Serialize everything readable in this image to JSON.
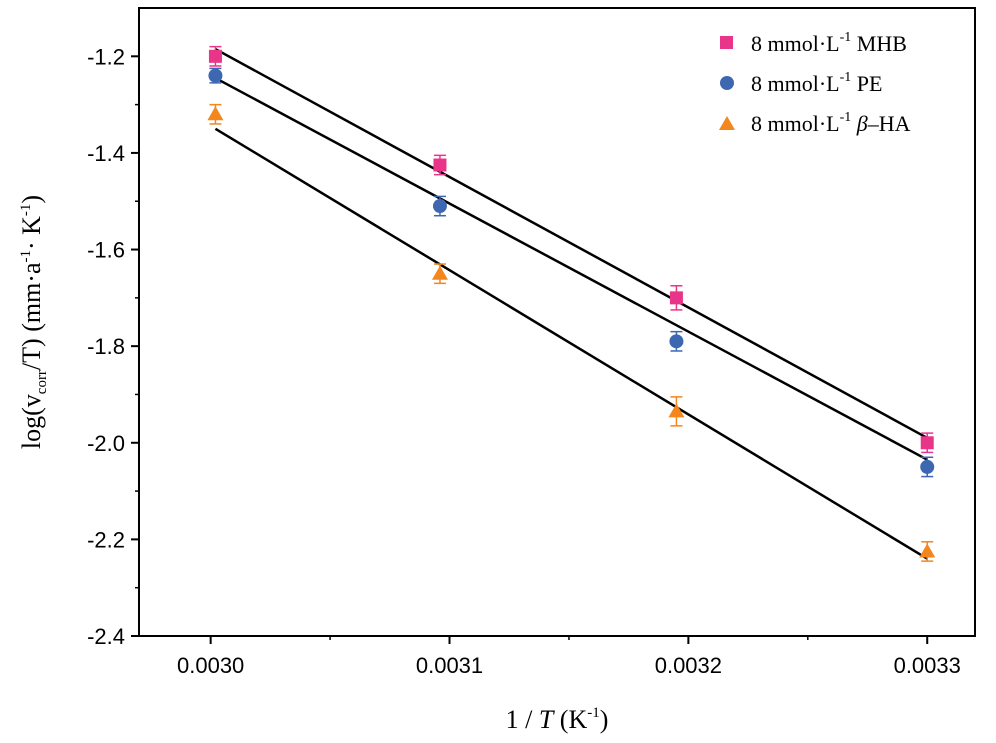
{
  "chart_data": {
    "type": "scatter",
    "title": "",
    "xlabel_prefix": "1 / ",
    "xlabel_var": "T",
    "xlabel_unit_open": " (K",
    "xlabel_unit_exp": "-1",
    "xlabel_unit_close": ")",
    "ylabel_pre": "log(v",
    "ylabel_sub": "corr",
    "ylabel_mid": "/T) (mm·a",
    "ylabel_exp1": "-1",
    "ylabel_mid2": "· K",
    "ylabel_exp2": "-1",
    "ylabel_post": ")",
    "xlim": [
      0.00297,
      0.00332
    ],
    "ylim": [
      -2.4,
      -1.1
    ],
    "xticks": [
      0.003,
      0.0031,
      0.0032,
      0.0033
    ],
    "xtick_labels": [
      "0.0030",
      "0.0031",
      "0.0032",
      "0.0033"
    ],
    "yticks": [
      -2.4,
      -2.2,
      -2.0,
      -1.8,
      -1.6,
      -1.4,
      -1.2
    ],
    "ytick_labels": [
      "-2.4",
      "-2.2",
      "-2.0",
      "-1.8",
      "-1.6",
      "-1.4",
      "-1.2"
    ],
    "series": [
      {
        "name": "8 mmol·L-1 MHB",
        "legend_pre": "8 mmol·L",
        "legend_exp": "-1",
        "legend_post": " MHB",
        "legend_italic": "",
        "legend_tail": "",
        "marker": "square",
        "color": "#e8358a",
        "x": [
          0.003002,
          0.003096,
          0.003195,
          0.0033
        ],
        "y": [
          -1.2,
          -1.425,
          -1.7,
          -2.0
        ],
        "err": [
          0.02,
          0.02,
          0.025,
          0.02
        ],
        "fit": {
          "x0": 0.003002,
          "y0": -1.185,
          "x1": 0.0033,
          "y1": -1.99
        }
      },
      {
        "name": "8 mmol·L-1 PE",
        "legend_pre": "8 mmol·L",
        "legend_exp": "-1",
        "legend_post": " PE",
        "legend_italic": "",
        "legend_tail": "",
        "marker": "circle",
        "color": "#3d67b1",
        "x": [
          0.003002,
          0.003096,
          0.003195,
          0.0033
        ],
        "y": [
          -1.24,
          -1.51,
          -1.79,
          -2.05
        ],
        "err": [
          0.015,
          0.02,
          0.02,
          0.02
        ],
        "fit": {
          "x0": 0.003002,
          "y0": -1.245,
          "x1": 0.0033,
          "y1": -2.035
        }
      },
      {
        "name": "8 mmol·L-1 β–HA",
        "legend_pre": "8 mmol·L",
        "legend_exp": "-1",
        "legend_post": " ",
        "legend_italic": "β",
        "legend_tail": "–HA",
        "marker": "triangle",
        "color": "#f3861d",
        "x": [
          0.003002,
          0.003096,
          0.003195,
          0.0033
        ],
        "y": [
          -1.32,
          -1.65,
          -1.935,
          -2.225
        ],
        "err": [
          0.02,
          0.02,
          0.03,
          0.02
        ],
        "fit": {
          "x0": 0.003002,
          "y0": -1.35,
          "x1": 0.0033,
          "y1": -2.24
        }
      }
    ]
  }
}
